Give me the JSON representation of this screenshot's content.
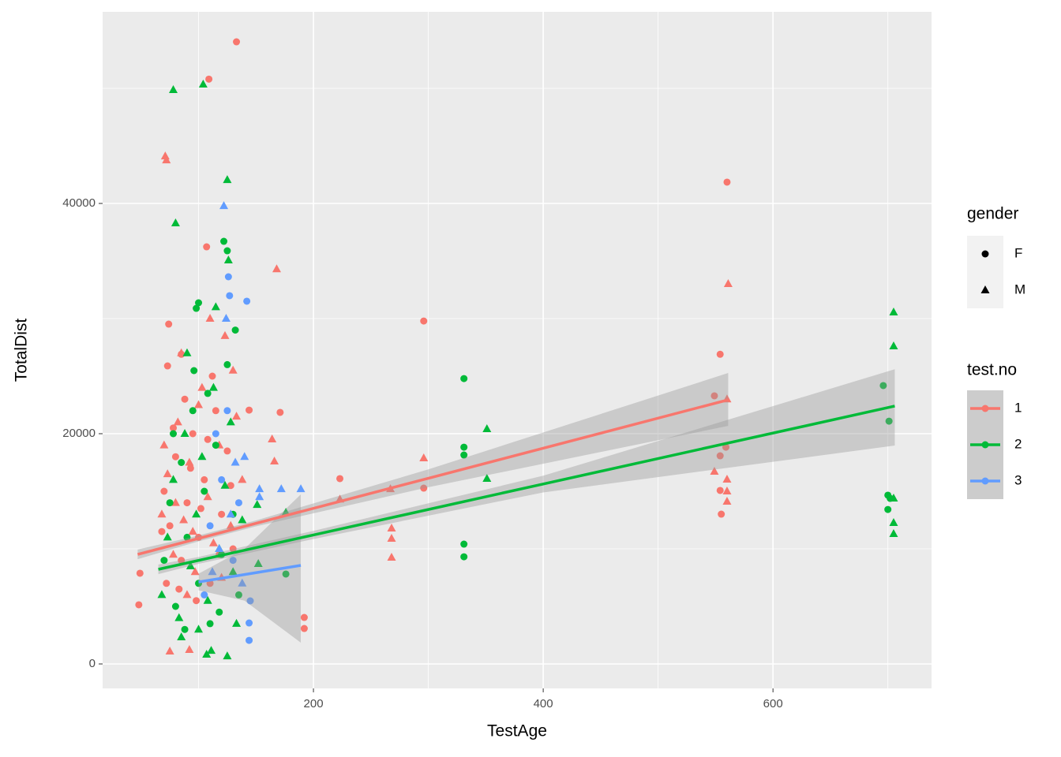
{
  "chart_data": {
    "type": "scatter",
    "x_label": "TestAge",
    "y_label": "TotalDist",
    "xlim": [
      16.5,
      738
    ],
    "ylim": [
      -2123,
      56644
    ],
    "xticks": [
      200,
      400,
      600
    ],
    "yticks": [
      0,
      20000,
      40000
    ],
    "xminor": [
      100,
      300,
      500,
      700
    ],
    "yminor": [
      10000,
      30000,
      50000
    ],
    "grid": true,
    "panel_color": "#ebebeb",
    "legend": {
      "gender": {
        "title": "gender",
        "labels": [
          "F",
          "M"
        ]
      },
      "test_no": {
        "title": "test.no",
        "labels": [
          "1",
          "2",
          "3"
        ],
        "colors": [
          "#F8766D",
          "#00BA38",
          "#619CFF"
        ]
      }
    },
    "series": [
      {
        "test_no": "1",
        "gender": "F",
        "color": "#F8766D",
        "x": [
          133,
          109,
          560,
          554,
          296,
          107,
          171,
          144,
          223,
          296,
          192,
          192,
          49,
          48,
          74,
          73,
          85,
          554,
          554,
          555,
          549,
          559,
          70,
          75,
          80,
          85,
          90,
          95,
          100,
          105,
          110,
          115,
          120,
          125,
          130,
          72,
          88,
          98,
          112,
          78,
          102,
          118,
          68,
          93,
          128,
          83,
          108
        ],
        "y": [
          54040,
          50800,
          41850,
          26900,
          29790,
          36230,
          21850,
          22050,
          16100,
          15270,
          4040,
          3080,
          7880,
          5140,
          29520,
          25890,
          26900,
          18080,
          15070,
          13010,
          23290,
          18830,
          15000,
          12000,
          18000,
          9000,
          14000,
          20000,
          11000,
          16000,
          7000,
          22000,
          13000,
          18500,
          10000,
          7000,
          23000,
          5500,
          25000,
          20500,
          13500,
          9500,
          11500,
          17000,
          15500,
          6500,
          19500
        ]
      },
      {
        "test_no": "1",
        "gender": "M",
        "color": "#F8766D",
        "x": [
          71,
          72,
          561,
          168,
          164,
          166,
          223,
          267,
          268,
          268,
          268,
          296,
          75,
          92,
          549,
          560,
          560,
          560,
          560,
          68,
          73,
          78,
          82,
          87,
          92,
          97,
          103,
          108,
          113,
          118,
          123,
          128,
          133,
          70,
          80,
          90,
          100,
          110,
          120,
          130,
          138,
          85,
          95
        ],
        "y": [
          44100,
          43760,
          33010,
          34300,
          19520,
          17600,
          14300,
          15200,
          11780,
          10890,
          9250,
          17880,
          1100,
          1230,
          16710,
          16030,
          14110,
          15000,
          23000,
          13000,
          16500,
          9500,
          21000,
          12500,
          17500,
          8000,
          24000,
          14500,
          10500,
          19000,
          28500,
          12000,
          21500,
          19000,
          14000,
          6000,
          22500,
          30000,
          7500,
          25500,
          16000,
          27000,
          11500
        ]
      },
      {
        "test_no": "2",
        "gender": "F",
        "color": "#00BA38",
        "x": [
          122,
          125,
          696,
          701,
          700,
          702,
          700,
          331,
          331,
          331,
          331,
          331,
          176,
          100,
          98,
          96,
          70,
          75,
          80,
          85,
          90,
          95,
          100,
          105,
          110,
          115,
          120,
          125,
          130,
          135,
          78,
          88,
          108,
          118,
          132
        ],
        "y": [
          36710,
          35890,
          24180,
          21090,
          14660,
          14380,
          13420,
          24790,
          18830,
          18150,
          10410,
          9310,
          7810,
          31370,
          30890,
          25480,
          9000,
          14000,
          5000,
          17500,
          11000,
          22000,
          7000,
          15000,
          3500,
          19000,
          9500,
          26000,
          13000,
          6000,
          20000,
          3000,
          23500,
          4500,
          29000
        ]
      },
      {
        "test_no": "2",
        "gender": "M",
        "color": "#00BA38",
        "x": [
          78,
          104,
          125,
          80,
          126,
          705,
          705,
          705,
          705,
          705,
          351,
          351,
          151,
          152,
          176,
          107,
          125,
          111,
          85,
          68,
          73,
          78,
          83,
          88,
          93,
          98,
          103,
          108,
          113,
          118,
          123,
          128,
          133,
          138,
          90,
          115,
          100,
          130
        ],
        "y": [
          49860,
          50340,
          42050,
          38290,
          35070,
          30550,
          27600,
          14380,
          12260,
          11300,
          20410,
          16100,
          13830,
          8700,
          13150,
          820,
          680,
          1160,
          2330,
          6000,
          11000,
          16000,
          4000,
          20000,
          8500,
          13000,
          18000,
          5500,
          24000,
          10000,
          15500,
          21000,
          3500,
          12500,
          27000,
          31000,
          3000,
          8000
        ]
      },
      {
        "test_no": "3",
        "gender": "F",
        "color": "#619CFF",
        "x": [
          126,
          142,
          127,
          145,
          144,
          144,
          110,
          120,
          130,
          115,
          135,
          105,
          125
        ],
        "y": [
          33630,
          31510,
          31990,
          5480,
          3560,
          2050,
          12000,
          16000,
          9000,
          20000,
          14000,
          6000,
          22000
        ]
      },
      {
        "test_no": "3",
        "gender": "M",
        "color": "#619CFF",
        "x": [
          122,
          153,
          172,
          189,
          153,
          140,
          118,
          128,
          132,
          112,
          138,
          124
        ],
        "y": [
          39790,
          15200,
          15200,
          15200,
          14500,
          18000,
          10000,
          13000,
          17500,
          8000,
          7000,
          30000
        ]
      }
    ],
    "fits": [
      {
        "color": "#F8766D",
        "x": [
          47,
          100,
          150,
          300,
          561
        ],
        "fit": [
          9520,
          10904,
          12210,
          16128,
          22945
        ],
        "lower": [
          9100,
          10650,
          11950,
          15350,
          20680
        ],
        "upper": [
          9940,
          11160,
          12470,
          16900,
          25270
        ]
      },
      {
        "color": "#00BA38",
        "x": [
          65,
          100,
          200,
          400,
          706
        ],
        "fit": [
          8220,
          8994,
          11206,
          15630,
          22400
        ],
        "lower": [
          7800,
          8700,
          10850,
          14900,
          18970
        ],
        "upper": [
          8640,
          9290,
          11560,
          16350,
          25600
        ]
      },
      {
        "color": "#619CFF",
        "x": [
          100,
          140,
          189
        ],
        "fit": [
          7120,
          7767,
          8560
        ],
        "lower": [
          6400,
          5500,
          1850
        ],
        "upper": [
          7840,
          10000,
          14730
        ]
      }
    ]
  }
}
